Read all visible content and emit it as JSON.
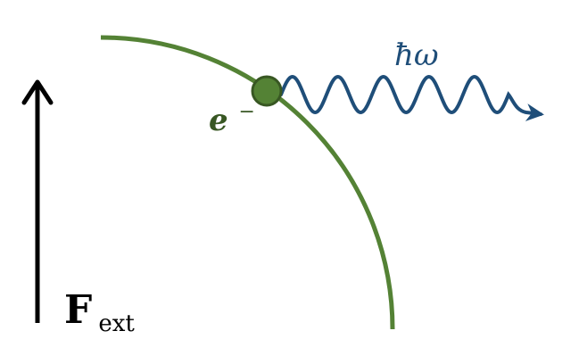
{
  "labels": {
    "photon": "ħω",
    "electron_base": "e",
    "electron_sup": "−",
    "force_base": "F",
    "force_sub": "ext"
  },
  "colors": {
    "orbit": "#548235",
    "electron_fill": "#548235",
    "electron_stroke": "#385723",
    "electron_label": "#385723",
    "photon": "#1f4e79",
    "force": "#000000"
  }
}
